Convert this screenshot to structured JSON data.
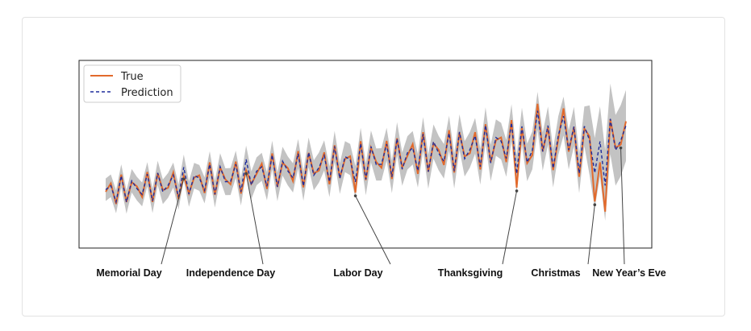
{
  "chart_data": {
    "type": "line",
    "title": "",
    "xlabel": "",
    "ylabel": "",
    "axes_ticks_visible": false,
    "grid": false,
    "legend_position": "top-left",
    "ylim": [
      0,
      1
    ],
    "series": [
      {
        "name": "True",
        "color": "#e26a2c",
        "style": "solid"
      },
      {
        "name": "Prediction",
        "color": "#1f2d9c",
        "style": "dashed"
      }
    ],
    "uncertainty_band_color": "#b8b8b8",
    "annotations": [
      {
        "label": "Memorial Day",
        "index": 15
      },
      {
        "label": "Independence Day",
        "index": 27
      },
      {
        "label": "Labor Day",
        "index": 48
      },
      {
        "label": "Thanksgiving",
        "index": 79
      },
      {
        "label": "Christmas",
        "index": 94
      },
      {
        "label": "New Year’s Eve",
        "index": 99
      }
    ],
    "n_points": 101
  }
}
